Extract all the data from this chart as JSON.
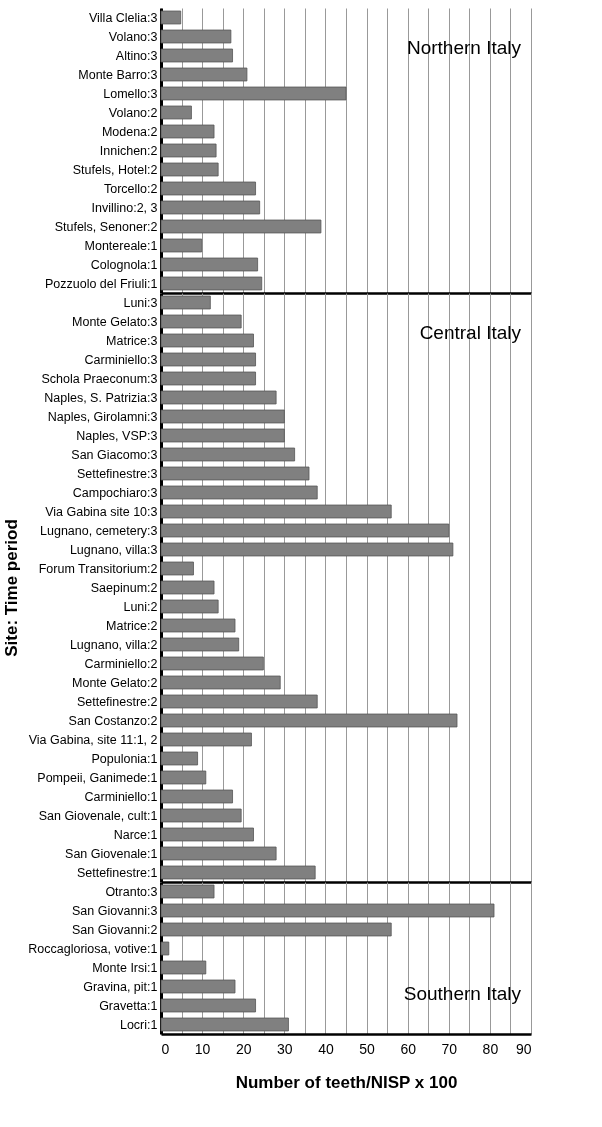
{
  "chart_data": [
    {
      "type": "bar",
      "orientation": "horizontal",
      "annotations": [
        "Northern Italy"
      ],
      "tick_labels": "y",
      "grid": "x",
      "color": "#808080",
      "categories": [
        "Villa Clelia:3",
        "Volano:3",
        "Altino:3",
        "Monte Barro:3",
        "Lomello:3",
        "Volano:2",
        "Modena:2",
        "Innichen:2",
        "Stufels, Hotel:2",
        "Torcello:2",
        "Invillino:2, 3",
        "Stufels, Senoner:2",
        "Montereale:1",
        "Colognola:1",
        "Pozzuolo del Friuli:1"
      ],
      "values": [
        4.8,
        17,
        17.4,
        20.9,
        45,
        7.4,
        12.9,
        13.4,
        13.9,
        23,
        24,
        38.9,
        9.9,
        23.5,
        24.5
      ],
      "xlim": [
        0,
        90
      ],
      "xticks": [
        0,
        {
          "value": 5,
          "label": null
        },
        10,
        {
          "value": 15,
          "label": null
        },
        20,
        {
          "value": 25,
          "label": null
        },
        30,
        {
          "value": 35,
          "label": null
        },
        40,
        {
          "value": 45,
          "label": null
        },
        50,
        {
          "value": 55,
          "label": null
        },
        60,
        {
          "value": 65,
          "label": null
        },
        70,
        {
          "value": 75,
          "label": null
        },
        80,
        {
          "value": 85,
          "label": null
        },
        90
      ]
    },
    {
      "type": "bar",
      "orientation": "horizontal",
      "annotations": [
        "Central Italy"
      ],
      "tick_labels": "y",
      "grid": "x",
      "color": "#808080",
      "ylabel": "Site: Time period",
      "categories": [
        "Luni:3",
        "Monte Gelato:3",
        "Matrice:3",
        "Carminiello:3",
        "Schola Praeconum:3",
        "Naples, S. Patrizia:3",
        "Naples, Girolamni:3",
        "Naples, VSP:3",
        "San Giacomo:3",
        "Settefinestre:3",
        "Campochiaro:3",
        "Via Gabina site 10:3",
        "Lugnano, cemetery:3",
        "Lugnano, villa:3",
        "Forum Transitorium:2",
        "Saepinum:2",
        "Luni:2",
        "Matrice:2",
        "Lugnano, villa:2",
        "Carminiello:2",
        "Monte Gelato:2",
        "Settefinestre:2",
        "San Costanzo:2",
        "Via Gabina, site 11:1, 2",
        "Populonia:1",
        "Pompeii, Ganimede:1",
        "Carminiello:1",
        "San Giovenale, cult:1",
        "Narce:1",
        "San Giovenale:1",
        "Settefinestre:1"
      ],
      "values": [
        12,
        19.5,
        22.5,
        23,
        23,
        28,
        30,
        30,
        32.5,
        36,
        38,
        56,
        70,
        71,
        7.9,
        12.9,
        13.9,
        18,
        18.9,
        24.9,
        29,
        38,
        72,
        22,
        8.9,
        10.9,
        17.4,
        19.5,
        22.5,
        28,
        37.5
      ],
      "xlim": [
        0,
        90
      ],
      "xticks": [
        0,
        {
          "value": 5,
          "label": null
        },
        10,
        {
          "value": 15,
          "label": null
        },
        20,
        {
          "value": 25,
          "label": null
        },
        30,
        {
          "value": 35,
          "label": null
        },
        40,
        {
          "value": 45,
          "label": null
        },
        50,
        {
          "value": 55,
          "label": null
        },
        60,
        {
          "value": 65,
          "label": null
        },
        70,
        {
          "value": 75,
          "label": null
        },
        80,
        {
          "value": 85,
          "label": null
        },
        90
      ]
    },
    {
      "type": "bar",
      "orientation": "horizontal",
      "annotations": [
        "Southern Italy"
      ],
      "grid": "x",
      "color": "#808080",
      "xlabel": "Number of teeth/NISP x 100",
      "categories": [
        "Otranto:3",
        "San Giovanni:3",
        "San Giovanni:2",
        "Roccagloriosa, votive:1",
        "Monte Irsi:1",
        "Gravina, pit:1",
        "Gravetta:1",
        "Locri:1"
      ],
      "values": [
        12.9,
        81,
        56,
        1.9,
        10.9,
        18,
        23,
        31
      ],
      "xlim": [
        0,
        90
      ],
      "xticks": [
        0,
        {
          "value": 5,
          "label": null
        },
        10,
        {
          "value": 15,
          "label": null
        },
        20,
        {
          "value": 25,
          "label": null
        },
        30,
        {
          "value": 35,
          "label": null
        },
        40,
        {
          "value": 45,
          "label": null
        },
        50,
        {
          "value": 55,
          "label": null
        },
        60,
        {
          "value": 65,
          "label": null
        },
        70,
        {
          "value": 75,
          "label": null
        },
        80,
        {
          "value": 85,
          "label": null
        },
        90
      ]
    }
  ]
}
